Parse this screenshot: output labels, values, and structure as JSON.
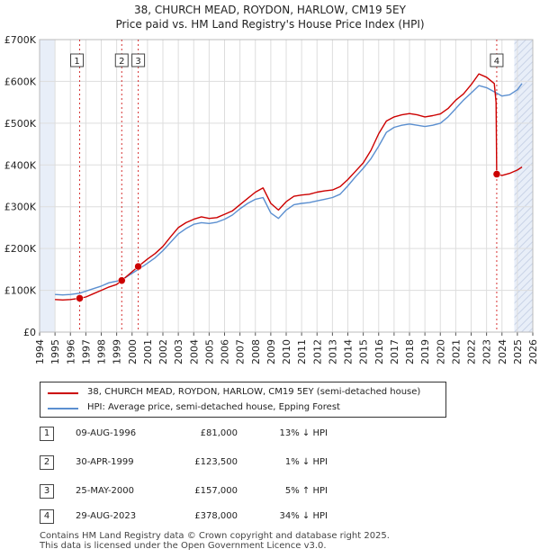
{
  "title": "38, CHURCH MEAD, ROYDON, HARLOW, CM19 5EY",
  "subtitle": "Price paid vs. HM Land Registry's House Price Index (HPI)",
  "colors": {
    "property": "#cc0000",
    "hpi": "#5b8fd0",
    "grid": "#dddddd",
    "shade": "#e8eef8",
    "marker_line": "#cc0000"
  },
  "chart_data": {
    "type": "line",
    "xlim": [
      1994,
      2026
    ],
    "ylim": [
      0,
      700000
    ],
    "y_ticks": [
      0,
      100000,
      200000,
      300000,
      400000,
      500000,
      600000,
      700000
    ],
    "y_tick_labels": [
      "£0",
      "£100K",
      "£200K",
      "£300K",
      "£400K",
      "£500K",
      "£600K",
      "£700K"
    ],
    "x_ticks": [
      1994,
      1995,
      1996,
      1997,
      1998,
      1999,
      2000,
      2001,
      2002,
      2003,
      2004,
      2005,
      2006,
      2007,
      2008,
      2009,
      2010,
      2011,
      2012,
      2013,
      2014,
      2015,
      2016,
      2017,
      2018,
      2019,
      2020,
      2021,
      2022,
      2023,
      2024,
      2025,
      2026
    ],
    "x_tick_labels": [
      "1994",
      "1995",
      "1996",
      "1997",
      "1998",
      "1999",
      "2000",
      "2001",
      "2002",
      "2003",
      "2004",
      "2005",
      "2006",
      "2007",
      "2008",
      "2009",
      "2010",
      "2011",
      "2012",
      "2013",
      "2014",
      "2015",
      "2016",
      "2017",
      "2018",
      "2019",
      "2020",
      "2021",
      "2022",
      "2023",
      "2024",
      "2025",
      "2026"
    ],
    "shaded_periods": [
      [
        1994,
        1995.0
      ],
      [
        2024.8,
        2026
      ]
    ],
    "series": [
      {
        "name": "38, CHURCH MEAD, ROYDON, HARLOW, CM19 5EY (semi-detached house)",
        "color": "#cc0000",
        "points": [
          [
            1995.0,
            78000
          ],
          [
            1995.5,
            77000
          ],
          [
            1996.0,
            78000
          ],
          [
            1996.6,
            81000
          ],
          [
            1997.0,
            84000
          ],
          [
            1997.5,
            92000
          ],
          [
            1998.0,
            100000
          ],
          [
            1998.5,
            108000
          ],
          [
            1999.0,
            114000
          ],
          [
            1999.33,
            123500
          ],
          [
            1999.8,
            138000
          ],
          [
            2000.4,
            157000
          ],
          [
            2001.0,
            175000
          ],
          [
            2001.5,
            188000
          ],
          [
            2002.0,
            205000
          ],
          [
            2002.5,
            228000
          ],
          [
            2003.0,
            250000
          ],
          [
            2003.5,
            262000
          ],
          [
            2004.0,
            270000
          ],
          [
            2004.5,
            276000
          ],
          [
            2005.0,
            272000
          ],
          [
            2005.5,
            274000
          ],
          [
            2006.0,
            282000
          ],
          [
            2006.5,
            290000
          ],
          [
            2007.0,
            305000
          ],
          [
            2007.5,
            320000
          ],
          [
            2008.0,
            335000
          ],
          [
            2008.5,
            345000
          ],
          [
            2009.0,
            308000
          ],
          [
            2009.5,
            292000
          ],
          [
            2010.0,
            312000
          ],
          [
            2010.5,
            325000
          ],
          [
            2011.0,
            328000
          ],
          [
            2011.5,
            330000
          ],
          [
            2012.0,
            335000
          ],
          [
            2012.5,
            338000
          ],
          [
            2013.0,
            340000
          ],
          [
            2013.5,
            348000
          ],
          [
            2014.0,
            365000
          ],
          [
            2014.5,
            385000
          ],
          [
            2015.0,
            405000
          ],
          [
            2015.5,
            435000
          ],
          [
            2016.0,
            475000
          ],
          [
            2016.5,
            505000
          ],
          [
            2017.0,
            515000
          ],
          [
            2017.5,
            520000
          ],
          [
            2018.0,
            523000
          ],
          [
            2018.5,
            520000
          ],
          [
            2019.0,
            515000
          ],
          [
            2019.5,
            518000
          ],
          [
            2020.0,
            522000
          ],
          [
            2020.5,
            535000
          ],
          [
            2021.0,
            555000
          ],
          [
            2021.5,
            570000
          ],
          [
            2022.0,
            592000
          ],
          [
            2022.5,
            618000
          ],
          [
            2023.0,
            610000
          ],
          [
            2023.5,
            595000
          ],
          [
            2023.62,
            550000
          ],
          [
            2023.66,
            378000
          ],
          [
            2024.0,
            375000
          ],
          [
            2024.5,
            380000
          ],
          [
            2025.0,
            388000
          ],
          [
            2025.3,
            395000
          ]
        ]
      },
      {
        "name": "HPI: Average price, semi-detached house, Epping Forest",
        "color": "#5b8fd0",
        "points": [
          [
            1995.0,
            90000
          ],
          [
            1995.5,
            89000
          ],
          [
            1996.0,
            90000
          ],
          [
            1996.6,
            93000
          ],
          [
            1997.0,
            98000
          ],
          [
            1997.5,
            104000
          ],
          [
            1998.0,
            110000
          ],
          [
            1998.5,
            118000
          ],
          [
            1999.0,
            122000
          ],
          [
            1999.33,
            125000
          ],
          [
            1999.8,
            136000
          ],
          [
            2000.4,
            150000
          ],
          [
            2001.0,
            165000
          ],
          [
            2001.5,
            178000
          ],
          [
            2002.0,
            195000
          ],
          [
            2002.5,
            215000
          ],
          [
            2003.0,
            235000
          ],
          [
            2003.5,
            248000
          ],
          [
            2004.0,
            258000
          ],
          [
            2004.5,
            262000
          ],
          [
            2005.0,
            260000
          ],
          [
            2005.5,
            263000
          ],
          [
            2006.0,
            270000
          ],
          [
            2006.5,
            280000
          ],
          [
            2007.0,
            295000
          ],
          [
            2007.5,
            308000
          ],
          [
            2008.0,
            318000
          ],
          [
            2008.5,
            322000
          ],
          [
            2009.0,
            285000
          ],
          [
            2009.5,
            272000
          ],
          [
            2010.0,
            292000
          ],
          [
            2010.5,
            305000
          ],
          [
            2011.0,
            308000
          ],
          [
            2011.5,
            310000
          ],
          [
            2012.0,
            314000
          ],
          [
            2012.5,
            318000
          ],
          [
            2013.0,
            322000
          ],
          [
            2013.5,
            330000
          ],
          [
            2014.0,
            350000
          ],
          [
            2014.5,
            372000
          ],
          [
            2015.0,
            392000
          ],
          [
            2015.5,
            415000
          ],
          [
            2016.0,
            445000
          ],
          [
            2016.5,
            478000
          ],
          [
            2017.0,
            490000
          ],
          [
            2017.5,
            495000
          ],
          [
            2018.0,
            498000
          ],
          [
            2018.5,
            495000
          ],
          [
            2019.0,
            492000
          ],
          [
            2019.5,
            495000
          ],
          [
            2020.0,
            500000
          ],
          [
            2020.5,
            515000
          ],
          [
            2021.0,
            535000
          ],
          [
            2021.5,
            555000
          ],
          [
            2022.0,
            572000
          ],
          [
            2022.5,
            590000
          ],
          [
            2023.0,
            585000
          ],
          [
            2023.5,
            575000
          ],
          [
            2024.0,
            565000
          ],
          [
            2024.5,
            568000
          ],
          [
            2025.0,
            580000
          ],
          [
            2025.3,
            595000
          ]
        ]
      }
    ],
    "sales": [
      {
        "label": "1",
        "x": 1996.6,
        "y": 81000
      },
      {
        "label": "2",
        "x": 1999.33,
        "y": 123500
      },
      {
        "label": "3",
        "x": 2000.4,
        "y": 157000
      },
      {
        "label": "4",
        "x": 2023.66,
        "y": 378000
      }
    ]
  },
  "legend": {
    "property_label": "38, CHURCH MEAD, ROYDON, HARLOW, CM19 5EY (semi-detached house)",
    "hpi_label": "HPI: Average price, semi-detached house, Epping Forest"
  },
  "transactions": [
    {
      "num": "1",
      "date": "09-AUG-1996",
      "price": "£81,000",
      "hpi": "13% ↓ HPI"
    },
    {
      "num": "2",
      "date": "30-APR-1999",
      "price": "£123,500",
      "hpi": "1% ↓ HPI"
    },
    {
      "num": "3",
      "date": "25-MAY-2000",
      "price": "£157,000",
      "hpi": "5% ↑ HPI"
    },
    {
      "num": "4",
      "date": "29-AUG-2023",
      "price": "£378,000",
      "hpi": "34% ↓ HPI"
    }
  ],
  "footer": {
    "line1": "Contains HM Land Registry data © Crown copyright and database right 2025.",
    "line2": "This data is licensed under the Open Government Licence v3.0."
  }
}
